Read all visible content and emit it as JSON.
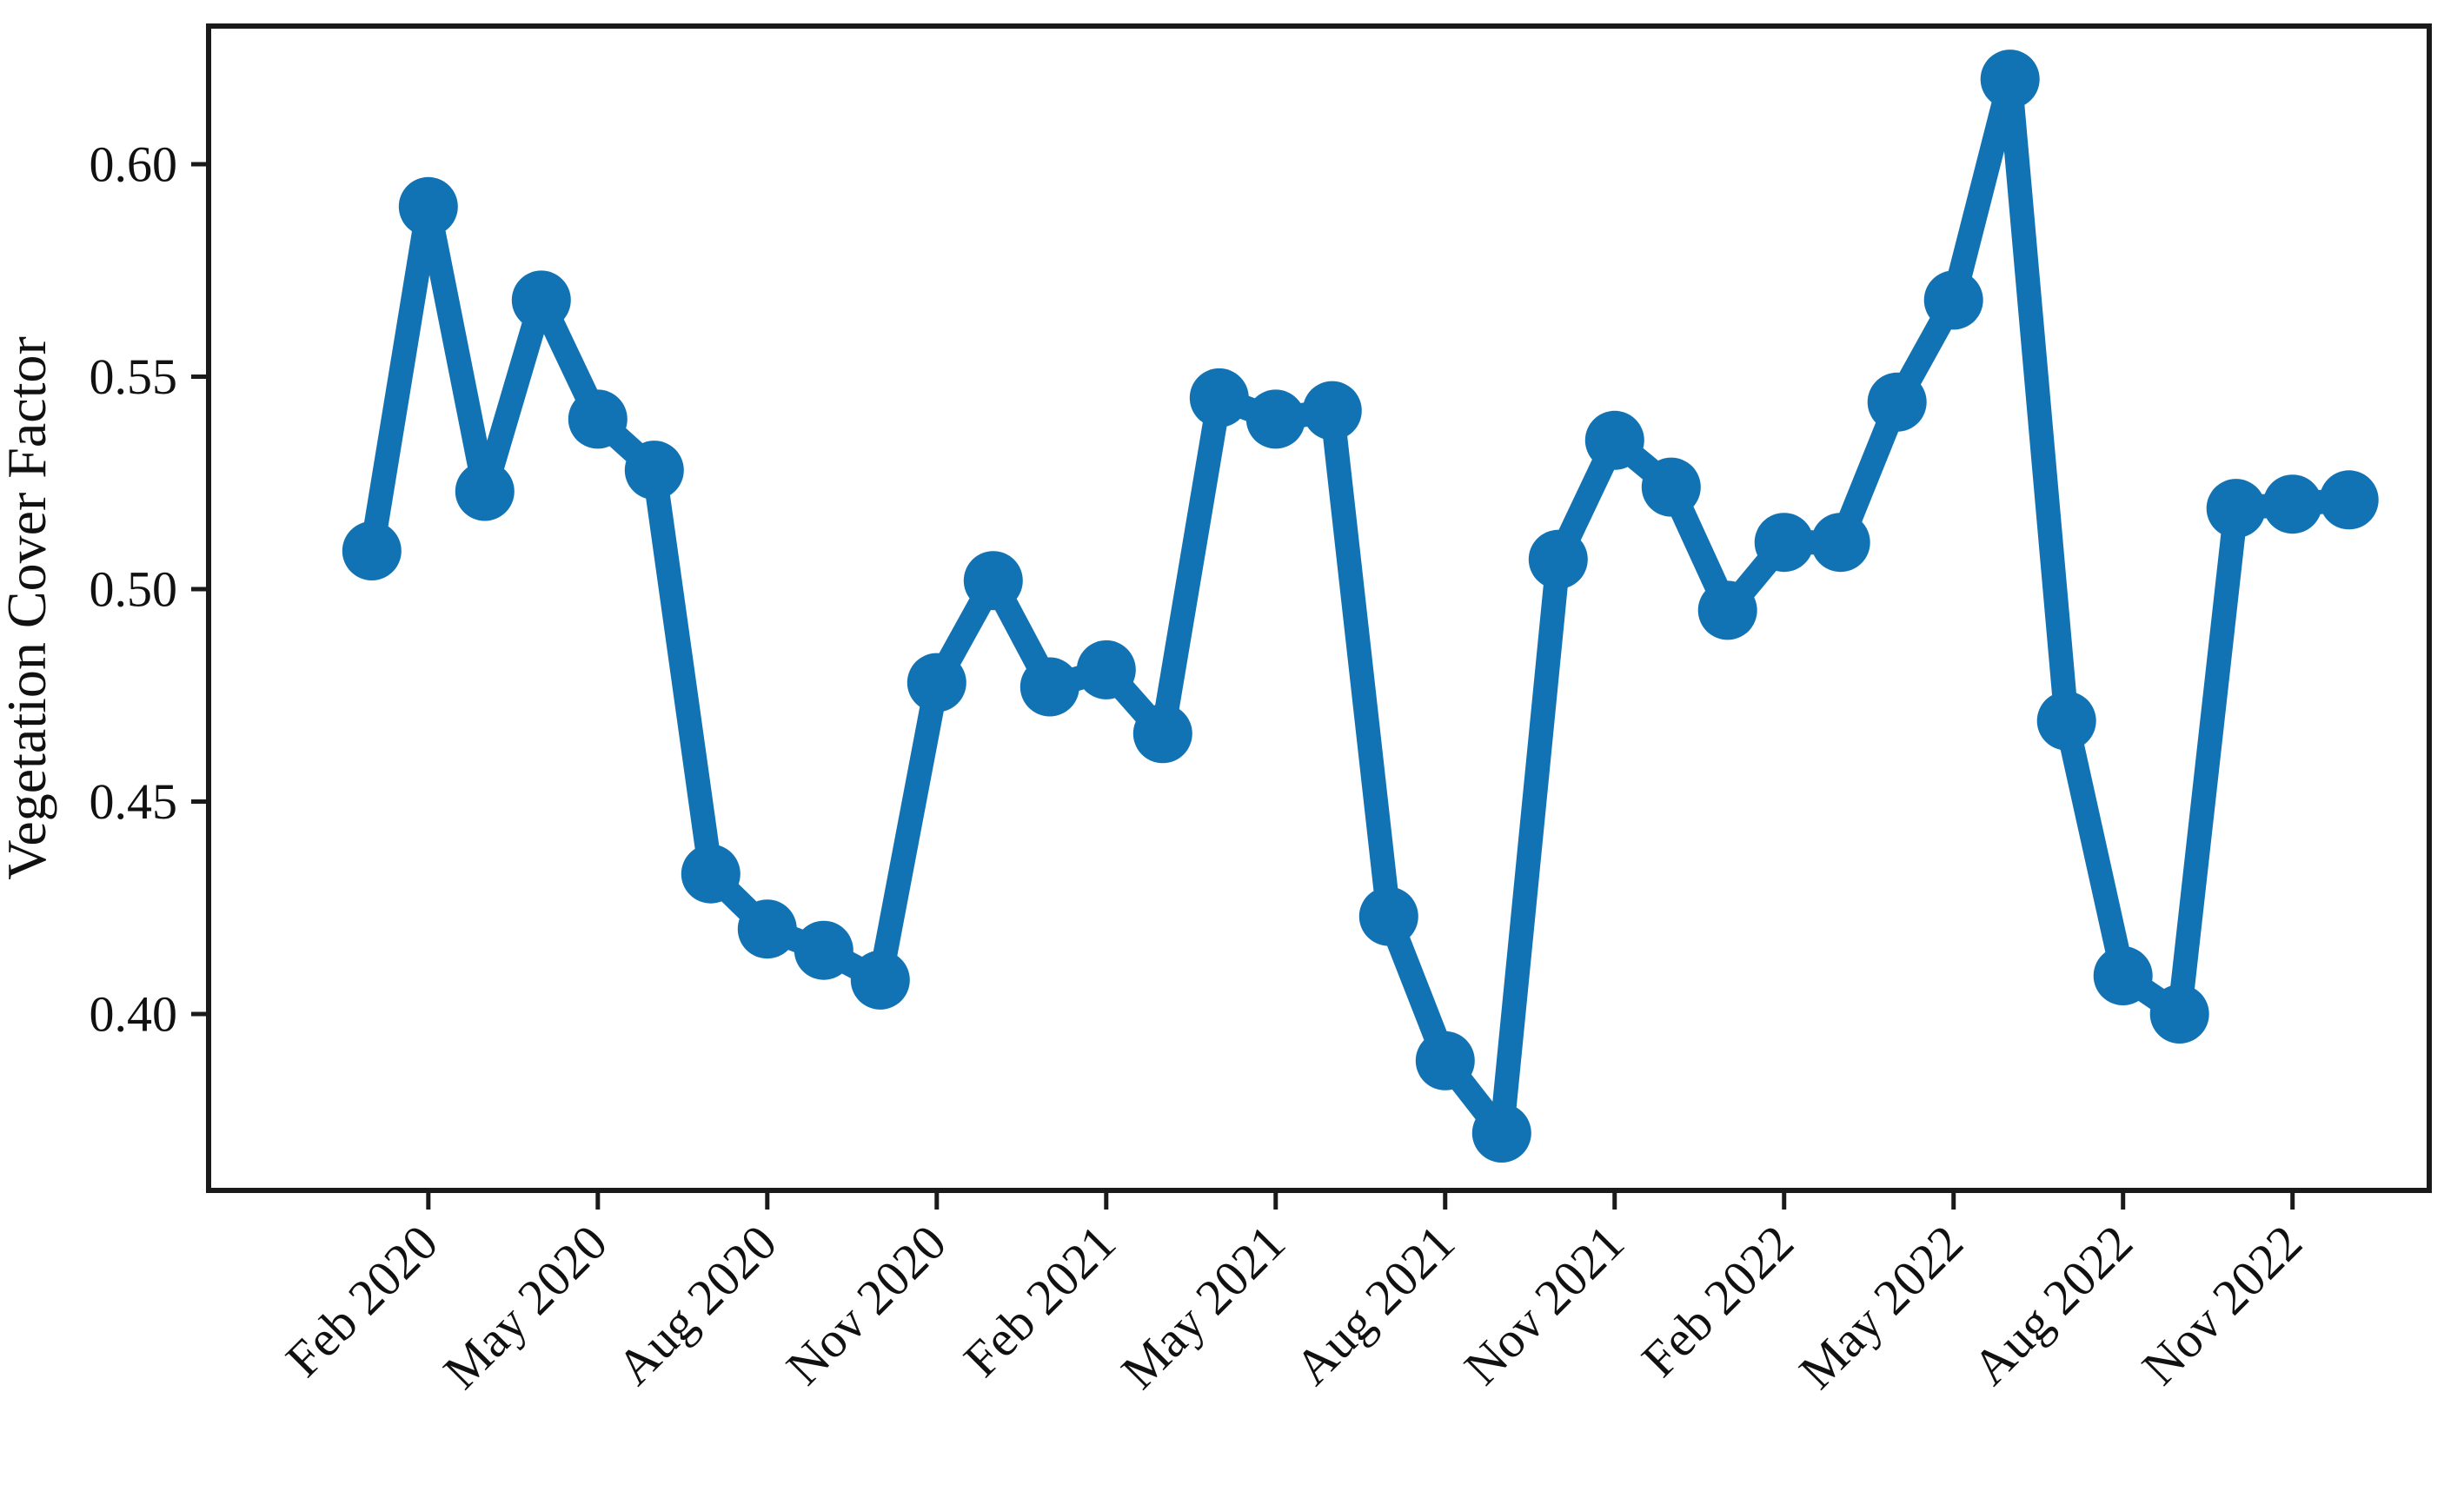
{
  "figure": {
    "background": "#ffffff",
    "axes_color": "#1a1a1a"
  },
  "chart_data": {
    "type": "line",
    "title": "",
    "xlabel": "",
    "ylabel": "Vegetation Cover Factor",
    "grid": false,
    "legend_position": "none",
    "marker": "circle",
    "line_color": "#1273b4",
    "ylim": [
      0.3585,
      0.6325
    ],
    "xlim_month_index": [
      -2.89,
      36.42
    ],
    "y_ticks": [
      "0.40",
      "0.45",
      "0.50",
      "0.55",
      "0.60"
    ],
    "y_tick_values": [
      0.4,
      0.45,
      0.5,
      0.55,
      0.6
    ],
    "x_tick_labels": [
      "Feb 2020",
      "May 2020",
      "Aug 2020",
      "Nov 2020",
      "Feb 2021",
      "May 2021",
      "Aug 2021",
      "Nov 2021",
      "Feb 2022",
      "May 2022",
      "Aug 2022",
      "Nov 2022"
    ],
    "x_tick_month_index": [
      1,
      4,
      7,
      10,
      13,
      16,
      19,
      22,
      25,
      28,
      31,
      34
    ],
    "series": [
      {
        "name": "Vegetation Cover Factor",
        "color": "#1273b4",
        "x": [
          "Jan 2020",
          "Feb 2020",
          "Mar 2020",
          "Apr 2020",
          "May 2020",
          "Jun 2020",
          "Jul 2020",
          "Aug 2020",
          "Sep 2020",
          "Oct 2020",
          "Nov 2020",
          "Dec 2020",
          "Jan 2021",
          "Feb 2021",
          "Mar 2021",
          "Apr 2021",
          "May 2021",
          "Jun 2021",
          "Jul 2021",
          "Aug 2021",
          "Sep 2021",
          "Oct 2021",
          "Nov 2021",
          "Dec 2021",
          "Jan 2022",
          "Feb 2022",
          "Mar 2022",
          "Apr 2022",
          "May 2022",
          "Jun 2022",
          "Jul 2022",
          "Aug 2022",
          "Sep 2022",
          "Oct 2022",
          "Nov 2022",
          "Dec 2022"
        ],
        "values": [
          0.509,
          0.59,
          0.523,
          0.568,
          0.54,
          0.528,
          0.433,
          0.42,
          0.415,
          0.408,
          0.478,
          0.502,
          0.477,
          0.481,
          0.466,
          0.545,
          0.54,
          0.542,
          0.423,
          0.389,
          0.372,
          0.507,
          0.535,
          0.524,
          0.495,
          0.511,
          0.511,
          0.544,
          0.568,
          0.62,
          0.469,
          0.409,
          0.4,
          0.519,
          0.52,
          0.521
        ]
      }
    ]
  }
}
